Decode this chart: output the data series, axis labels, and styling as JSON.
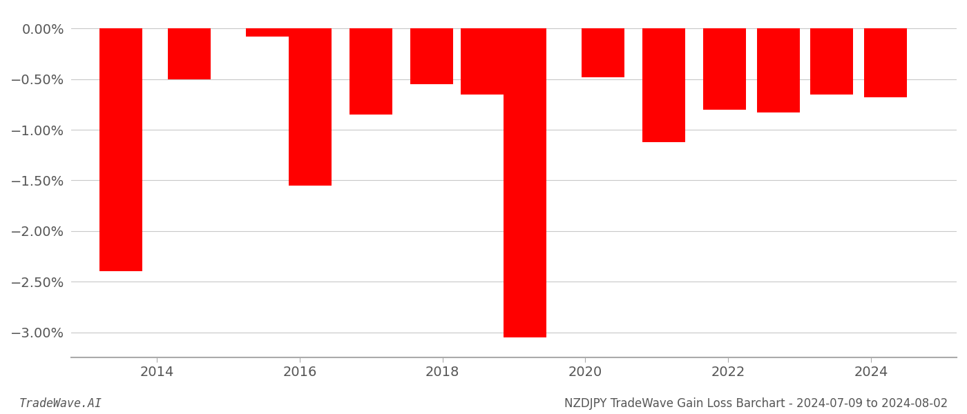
{
  "x_positions": [
    2013.5,
    2014.45,
    2015.55,
    2016.15,
    2017.0,
    2017.85,
    2018.55,
    2019.15,
    2020.25,
    2021.1,
    2021.95,
    2022.7,
    2023.45,
    2024.2
  ],
  "values": [
    -2.4,
    -0.5,
    -0.08,
    -1.55,
    -0.85,
    -0.55,
    -0.65,
    -3.05,
    -0.48,
    -1.12,
    -0.8,
    -0.83,
    -0.65,
    -0.68
  ],
  "bar_color": "#ff0000",
  "background_color": "#ffffff",
  "grid_color": "#c8c8c8",
  "text_color": "#555555",
  "footer_left": "TradeWave.AI",
  "footer_right": "NZDJPY TradeWave Gain Loss Barchart - 2024-07-09 to 2024-08-02",
  "ylim": [
    -3.25,
    0.18
  ],
  "yticks": [
    0.0,
    -0.5,
    -1.0,
    -1.5,
    -2.0,
    -2.5,
    -3.0
  ],
  "xticks": [
    2014,
    2016,
    2018,
    2020,
    2022,
    2024
  ],
  "xlim": [
    2012.8,
    2025.2
  ],
  "bar_width": 0.6,
  "tick_fontsize": 14,
  "footer_fontsize": 12
}
